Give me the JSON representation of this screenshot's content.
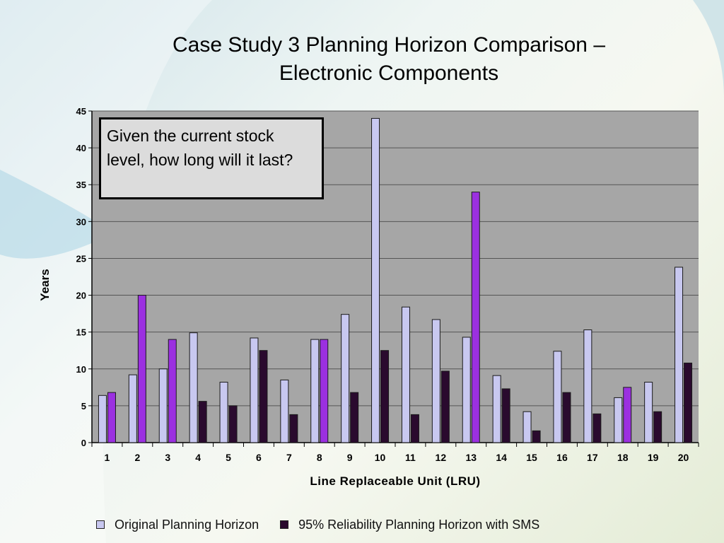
{
  "slide": {
    "title_line1": "Case Study 3 Planning Horizon Comparison –",
    "title_line2": "Electronic Components",
    "callout_text": "Given the current stock level, how long will it last?"
  },
  "chart_data": {
    "type": "bar",
    "title": "Case Study 3 Planning Horizon Comparison – Electronic Components",
    "xlabel": "Line Replaceable Unit (LRU)",
    "ylabel": "Years",
    "ylim": [
      0,
      45
    ],
    "yticks": [
      0,
      5,
      10,
      15,
      20,
      25,
      30,
      35,
      40,
      45
    ],
    "grid": true,
    "legend_position": "bottom",
    "categories": [
      "1",
      "2",
      "3",
      "4",
      "5",
      "6",
      "7",
      "8",
      "9",
      "10",
      "11",
      "12",
      "13",
      "14",
      "15",
      "16",
      "17",
      "18",
      "19",
      "20"
    ],
    "series": [
      {
        "name": "Original Planning Horizon",
        "color": "#c8c8f0",
        "values": [
          6.4,
          9.2,
          10.0,
          14.9,
          8.2,
          14.2,
          8.5,
          14.0,
          17.4,
          44.0,
          18.4,
          16.7,
          14.3,
          9.1,
          4.2,
          12.4,
          15.3,
          6.1,
          8.2,
          23.8
        ]
      },
      {
        "name": "95% Reliability Planning Horizon with SMS",
        "color": "#2a0a2e",
        "values": [
          6.8,
          20.0,
          14.0,
          5.6,
          5.0,
          12.5,
          3.8,
          14.0,
          6.8,
          12.5,
          3.8,
          9.7,
          34.0,
          7.3,
          1.6,
          6.8,
          3.9,
          7.5,
          4.2,
          10.8
        ]
      }
    ],
    "purple_highlight_lru": [
      "1",
      "2",
      "3",
      "8",
      "13",
      "18"
    ],
    "highlight_color": "#9b30e0"
  }
}
